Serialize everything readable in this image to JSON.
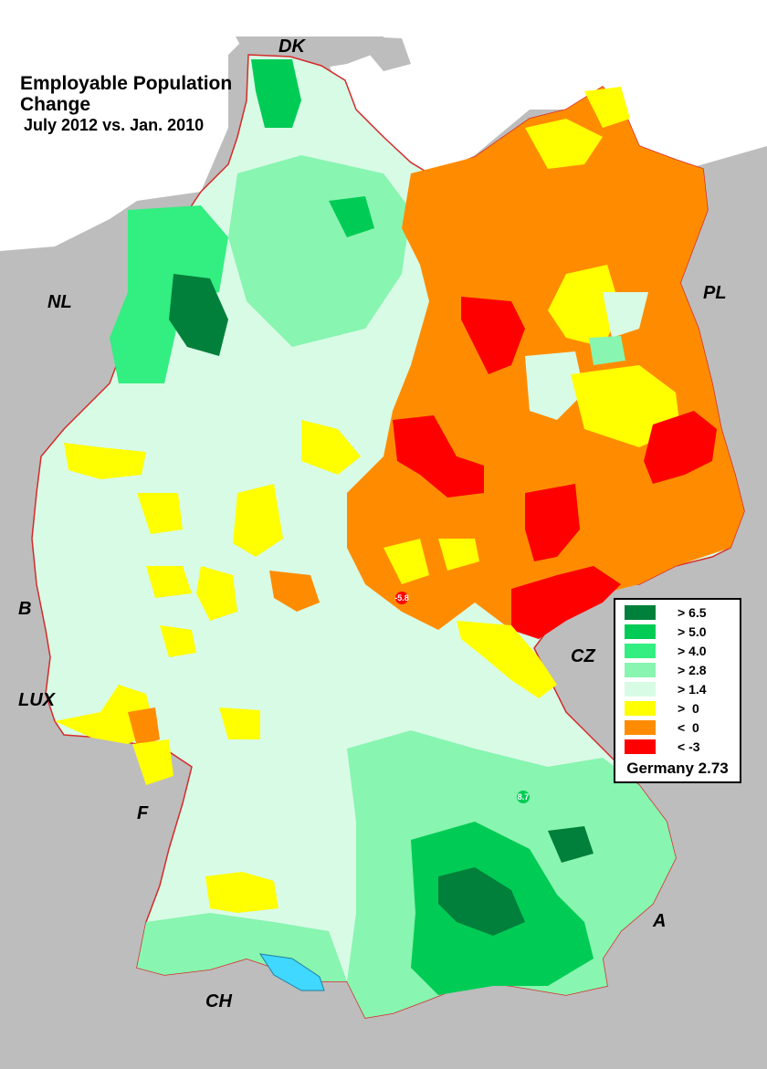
{
  "title": {
    "line1": "Employable Population",
    "line2": "Change",
    "line3": "July 2012 vs. Jan. 2010"
  },
  "countries": {
    "dk": "DK",
    "nl": "NL",
    "pl": "PL",
    "b": "B",
    "lux": "LUX",
    "cz": "CZ",
    "f": "F",
    "a": "A",
    "ch": "CH"
  },
  "legend": {
    "items": [
      {
        "label": "> 6.5",
        "color": "#00803a"
      },
      {
        "label": "> 5.0",
        "color": "#00cc55"
      },
      {
        "label": "> 4.0",
        "color": "#33ee80"
      },
      {
        "label": "> 2.8",
        "color": "#88f5b0"
      },
      {
        "label": "> 1.4",
        "color": "#d8fbe6"
      },
      {
        "label": ">  0",
        "color": "#ffff00"
      },
      {
        "label": "<  0",
        "color": "#ff8c00"
      },
      {
        "label": "< -3",
        "color": "#ff0000"
      }
    ],
    "total": "Germany 2.73"
  },
  "markers": {
    "min_value": "-5.8",
    "max_value": "8.7"
  },
  "colors": {
    "sea": "#ffffff",
    "neighbor": "#bdbdbd",
    "border": "#d62a2a"
  }
}
